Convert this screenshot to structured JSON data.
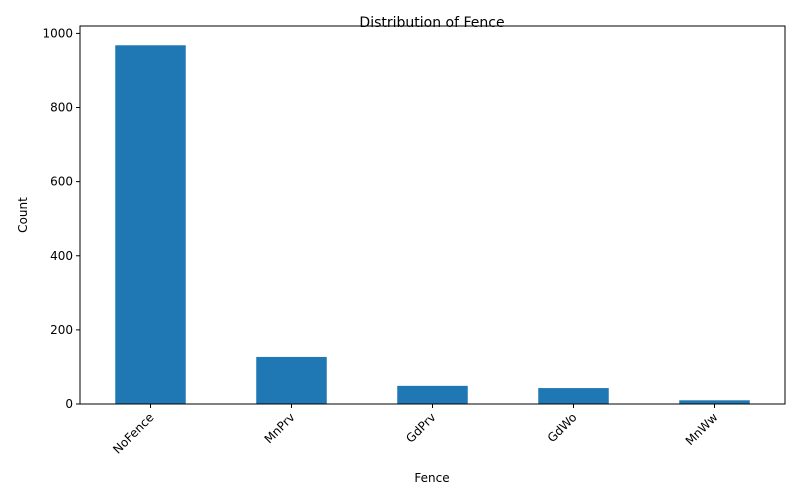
{
  "chart_data": {
    "type": "bar",
    "title": "Distribution of Fence",
    "xlabel": "Fence",
    "ylabel": "Count",
    "categories": [
      "NoFence",
      "MnPrv",
      "GdPrv",
      "GdWo",
      "MnWw"
    ],
    "values": [
      968,
      127,
      49,
      43,
      10
    ],
    "ylim": [
      0,
      1020
    ],
    "yticks": [
      0,
      200,
      400,
      600,
      800,
      1000
    ],
    "bar_color": "#1f77b4",
    "grid": false,
    "legend": "none"
  }
}
